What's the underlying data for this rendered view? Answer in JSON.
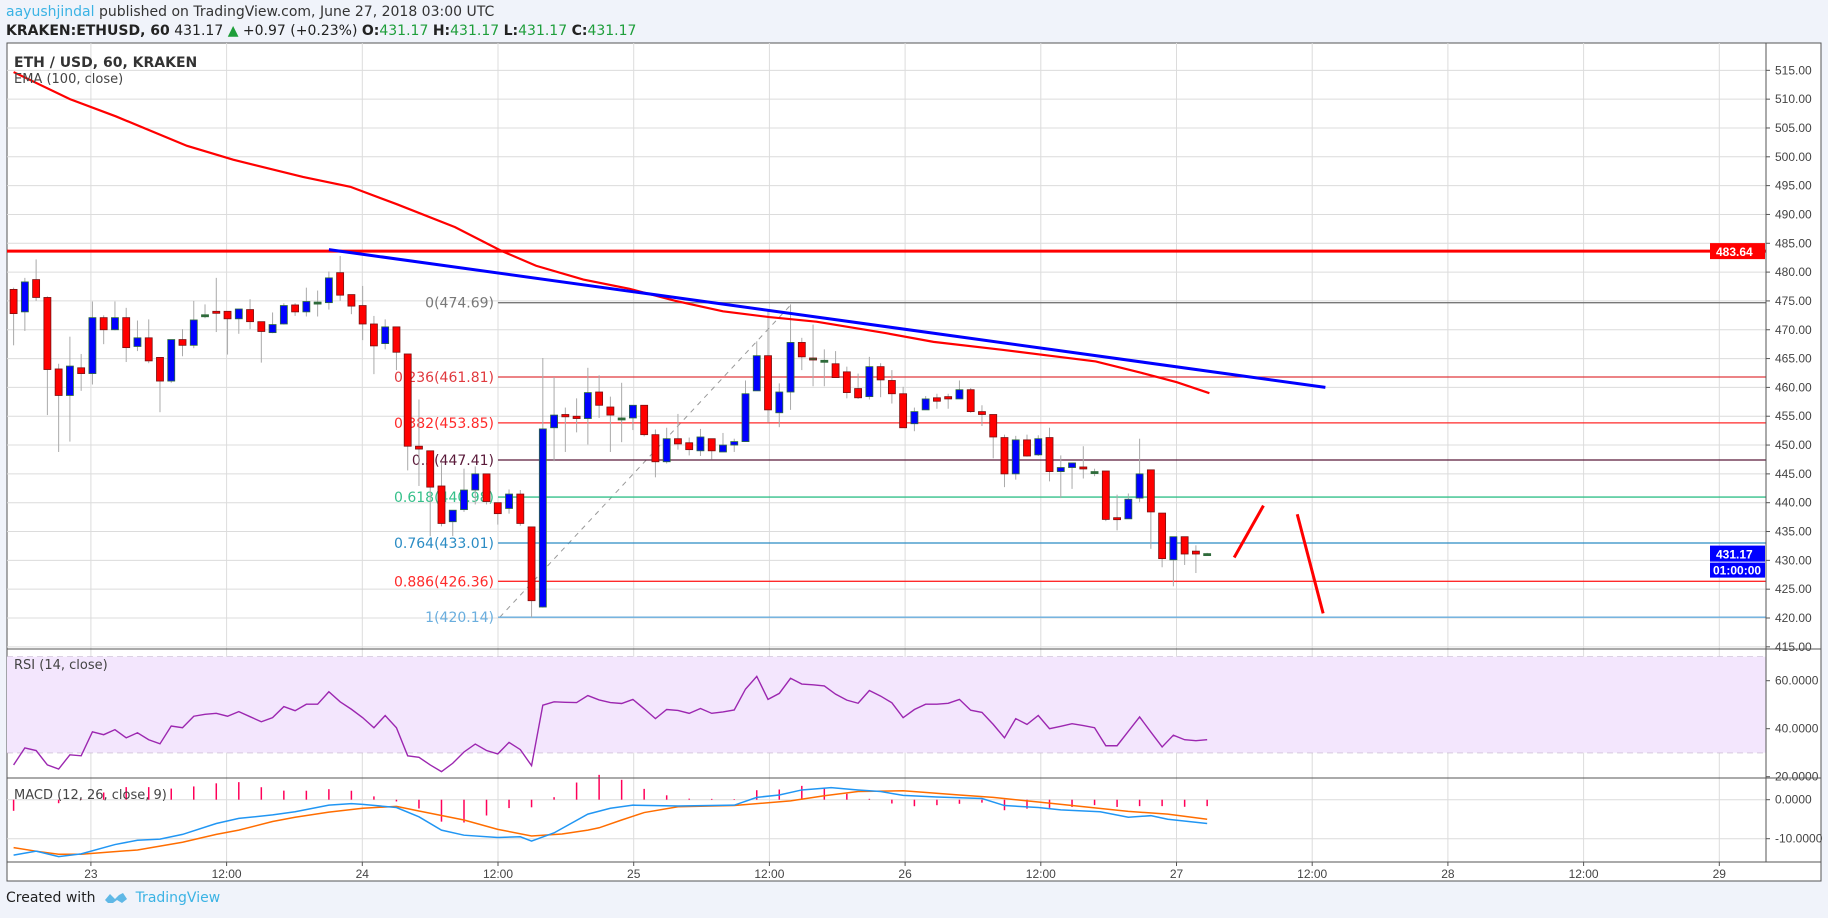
{
  "header": {
    "author": "aayushjindal",
    "published": "published on TradingView.com, June 27, 2018 03:00 UTC",
    "symbol": "KRAKEN:ETHUSD, 60",
    "last": "431.17",
    "change": "+0.97 (+0.23%)",
    "o_label": "O:",
    "o": "431.17",
    "h_label": "H:",
    "h": "431.17",
    "l_label": "L:",
    "l": "431.17",
    "c_label": "C:",
    "c": "431.17"
  },
  "legend": {
    "title": "ETH / USD, 60, KRAKEN",
    "ema": "EMA (100, close)",
    "rsi": "RSI (14, close)",
    "macd": "MACD (12, 26, close, 9)"
  },
  "footer": {
    "created_with": "Created with",
    "brand": "TradingView"
  },
  "colors": {
    "up": "#0000ff",
    "down": "#ff0000",
    "ema": "#ff0000",
    "trendline": "#0000ff",
    "resistance": "#ff0000",
    "rsi": "#9c27b0",
    "macd": "#2196f3",
    "signal": "#ff6d00",
    "hist": "#ff0059"
  },
  "chart_data": {
    "type": "candlestick",
    "title": "ETH / USD, 60, KRAKEN",
    "interval_minutes": 60,
    "price_axis": {
      "range": [
        415,
        515
      ],
      "ticks": [
        "415.00",
        "420.00",
        "425.00",
        "430.00",
        "435.00",
        "440.00",
        "445.00",
        "450.00",
        "455.00",
        "460.00",
        "465.00",
        "470.00",
        "475.00",
        "480.00",
        "485.00",
        "490.00",
        "495.00",
        "500.00",
        "505.00",
        "510.00",
        "515.00"
      ]
    },
    "time_axis": {
      "labels": [
        "23",
        "12:00",
        "24",
        "12:00",
        "25",
        "12:00",
        "26",
        "12:00",
        "27",
        "12:00",
        "28",
        "12:00",
        "29"
      ]
    },
    "ohlc": [
      [
        477.0,
        477.3,
        467.3,
        472.8
      ],
      [
        473.1,
        479.0,
        469.8,
        478.3
      ],
      [
        478.7,
        482.2,
        475.0,
        475.6
      ],
      [
        475.6,
        475.8,
        455.2,
        463.1
      ],
      [
        463.2,
        464.1,
        448.8,
        458.6
      ],
      [
        458.6,
        468.8,
        450.6,
        463.7
      ],
      [
        463.4,
        465.8,
        459.4,
        462.4
      ],
      [
        462.4,
        474.9,
        460.5,
        472.1
      ],
      [
        472.1,
        472.5,
        467.5,
        470.0
      ],
      [
        470.0,
        474.9,
        469.9,
        472.1
      ],
      [
        472.1,
        473.8,
        464.4,
        466.9
      ],
      [
        467.1,
        471.6,
        466.3,
        468.6
      ],
      [
        468.6,
        471.8,
        464.2,
        464.6
      ],
      [
        465.2,
        465.2,
        455.7,
        461.1
      ],
      [
        461.1,
        468.3,
        460.8,
        468.3
      ],
      [
        468.3,
        470.1,
        465.4,
        467.3
      ],
      [
        467.3,
        475.0,
        466.8,
        471.7
      ],
      [
        472.6,
        474.4,
        472.0,
        472.6
      ],
      [
        473.2,
        479.0,
        469.6,
        472.9
      ],
      [
        473.2,
        473.2,
        465.7,
        471.9
      ],
      [
        471.9,
        473.6,
        469.3,
        473.6
      ],
      [
        473.5,
        475.3,
        470.1,
        471.4
      ],
      [
        471.4,
        471.4,
        464.3,
        469.7
      ],
      [
        469.5,
        473.0,
        469.4,
        470.9
      ],
      [
        471.0,
        474.6,
        470.9,
        474.2
      ],
      [
        474.3,
        474.6,
        472.4,
        473.1
      ],
      [
        473.1,
        477.3,
        472.3,
        474.9
      ],
      [
        474.8,
        476.8,
        472.3,
        474.8
      ],
      [
        474.7,
        480.1,
        473.5,
        479.0
      ],
      [
        479.9,
        482.8,
        475.0,
        476.0
      ],
      [
        476.1,
        476.1,
        472.7,
        474.1
      ],
      [
        474.2,
        477.6,
        468.2,
        471.0
      ],
      [
        471.0,
        472.4,
        462.3,
        467.2
      ],
      [
        467.6,
        471.8,
        466.6,
        470.5
      ],
      [
        470.5,
        470.5,
        463.0,
        466.1
      ],
      [
        465.8,
        465.8,
        445.6,
        449.8
      ],
      [
        449.8,
        457.9,
        442.9,
        449.3
      ],
      [
        449.0,
        449.0,
        434.2,
        442.7
      ],
      [
        442.9,
        446.9,
        435.9,
        436.4
      ],
      [
        436.7,
        438.7,
        434.2,
        438.7
      ],
      [
        438.8,
        445.9,
        438.4,
        442.2
      ],
      [
        442.2,
        446.3,
        439.7,
        445.0
      ],
      [
        445.0,
        445.0,
        439.7,
        440.2
      ],
      [
        440.0,
        440.0,
        436.2,
        438.1
      ],
      [
        439.0,
        442.3,
        438.1,
        441.5
      ],
      [
        441.5,
        442.2,
        436.0,
        436.4
      ],
      [
        435.8,
        435.8,
        420.1,
        423.0
      ],
      [
        421.9,
        465.1,
        421.8,
        452.8
      ],
      [
        453.0,
        461.8,
        447.2,
        455.2
      ],
      [
        455.3,
        456.5,
        448.8,
        454.9
      ],
      [
        455.0,
        458.1,
        452.2,
        454.6
      ],
      [
        454.6,
        463.4,
        450.1,
        459.1
      ],
      [
        459.2,
        462.1,
        454.7,
        456.9
      ],
      [
        456.6,
        458.4,
        448.8,
        455.2
      ],
      [
        454.7,
        460.8,
        450.5,
        454.7
      ],
      [
        454.7,
        456.9,
        452.6,
        456.9
      ],
      [
        456.9,
        456.9,
        451.5,
        451.8
      ],
      [
        451.8,
        452.7,
        444.4,
        447.1
      ],
      [
        447.1,
        453.0,
        446.8,
        451.1
      ],
      [
        451.1,
        455.4,
        449.2,
        450.2
      ],
      [
        450.4,
        451.3,
        448.2,
        449.2
      ],
      [
        449.0,
        452.8,
        448.1,
        451.4
      ],
      [
        451.1,
        451.1,
        447.5,
        449.0
      ],
      [
        448.8,
        452.1,
        448.8,
        450.0
      ],
      [
        450.0,
        451.1,
        448.8,
        450.6
      ],
      [
        450.6,
        461.2,
        450.6,
        458.9
      ],
      [
        459.4,
        468.0,
        459.4,
        465.5
      ],
      [
        465.5,
        473.2,
        453.9,
        456.1
      ],
      [
        455.6,
        460.7,
        453.1,
        459.2
      ],
      [
        459.2,
        474.4,
        456.1,
        467.8
      ],
      [
        467.8,
        468.6,
        463.0,
        465.3
      ],
      [
        465.1,
        470.9,
        460.2,
        465.0
      ],
      [
        464.7,
        466.6,
        460.2,
        464.7
      ],
      [
        464.1,
        466.3,
        461.7,
        461.7
      ],
      [
        462.7,
        463.6,
        458.1,
        459.1
      ],
      [
        459.8,
        462.4,
        458.0,
        458.2
      ],
      [
        458.4,
        465.3,
        457.9,
        463.6
      ],
      [
        463.6,
        464.2,
        458.3,
        461.3
      ],
      [
        461.2,
        463.0,
        457.2,
        458.9
      ],
      [
        458.9,
        460.1,
        453.0,
        453.0
      ],
      [
        453.7,
        456.5,
        452.4,
        455.8
      ],
      [
        456.1,
        458.5,
        456.1,
        458.0
      ],
      [
        458.2,
        458.9,
        456.3,
        457.6
      ],
      [
        458.4,
        458.9,
        456.3,
        458.0
      ],
      [
        458.0,
        461.2,
        458.0,
        459.6
      ],
      [
        459.6,
        459.9,
        455.6,
        455.8
      ],
      [
        455.8,
        456.9,
        453.3,
        455.3
      ],
      [
        455.3,
        455.3,
        447.7,
        451.4
      ],
      [
        451.3,
        451.8,
        442.7,
        445.0
      ],
      [
        445.0,
        451.6,
        444.0,
        450.9
      ],
      [
        450.9,
        451.8,
        448.0,
        448.1
      ],
      [
        448.3,
        451.7,
        448.1,
        451.1
      ],
      [
        451.3,
        453.0,
        443.7,
        445.4
      ],
      [
        445.4,
        448.2,
        440.8,
        446.1
      ],
      [
        446.1,
        446.9,
        442.4,
        446.9
      ],
      [
        446.2,
        449.8,
        444.2,
        446.0
      ],
      [
        445.4,
        445.9,
        444.6,
        445.4
      ],
      [
        445.5,
        445.5,
        436.8,
        437.1
      ],
      [
        437.4,
        441.4,
        435.2,
        437.2
      ],
      [
        437.2,
        441.6,
        437.2,
        440.6
      ],
      [
        440.8,
        451.1,
        440.1,
        445.0
      ],
      [
        445.7,
        445.7,
        432.0,
        438.4
      ],
      [
        438.2,
        438.2,
        428.8,
        430.3
      ],
      [
        430.1,
        434.1,
        425.5,
        434.1
      ],
      [
        434.1,
        434.1,
        429.2,
        431.1
      ],
      [
        431.6,
        432.6,
        427.8,
        431.1
      ],
      [
        431.17,
        431.3,
        431.1,
        431.17
      ]
    ],
    "ema100": [
      [
        0,
        514.7
      ],
      [
        5,
        510.0
      ],
      [
        9.1,
        507.0
      ],
      [
        15.4,
        501.9
      ],
      [
        19.5,
        499.5
      ],
      [
        25.7,
        496.5
      ],
      [
        29.9,
        494.8
      ],
      [
        34,
        491.8
      ],
      [
        39.2,
        487.8
      ],
      [
        43.3,
        483.7
      ],
      [
        46.4,
        481.1
      ],
      [
        50.6,
        478.7
      ],
      [
        54.7,
        477.1
      ],
      [
        58.8,
        475.0
      ],
      [
        63,
        473.2
      ],
      [
        67.1,
        472.2
      ],
      [
        71.3,
        471.4
      ],
      [
        77.5,
        469.4
      ],
      [
        81.7,
        467.9
      ],
      [
        87.9,
        466.5
      ],
      [
        92,
        465.5
      ],
      [
        96.1,
        464.5
      ],
      [
        100.2,
        462.5
      ],
      [
        103.3,
        460.9
      ],
      [
        106.2,
        459.0
      ]
    ],
    "resistance": {
      "price": 483.64,
      "label": "483.64"
    },
    "trendline": {
      "from": [
        28,
        483.9
      ],
      "to": [
        116.5,
        460.0
      ]
    },
    "last_price": {
      "label": "431.17",
      "countdown": "01:00:00"
    },
    "fibonacci": {
      "anchor_from": [
        43.0,
        420.14
      ],
      "anchor_to": [
        69.2,
        474.69
      ],
      "levels": [
        {
          "label": "0(474.69)",
          "price": 474.69,
          "color": "#787878"
        },
        {
          "label": "0.236(461.81)",
          "price": 461.81,
          "color": "#e0393e"
        },
        {
          "label": "0.382(453.85)",
          "price": 453.85,
          "color": "#ff2a2a"
        },
        {
          "label": "0.5(447.41)",
          "price": 447.41,
          "color": "#5a1a3a"
        },
        {
          "label": "0.618(440.98)",
          "price": 440.98,
          "color": "#35c08a"
        },
        {
          "label": "0.764(433.01)",
          "price": 433.01,
          "color": "#2b8cc4"
        },
        {
          "label": "0.886(426.36)",
          "price": 426.36,
          "color": "#ff2a2a"
        },
        {
          "label": "1(420.14)",
          "price": 420.14,
          "color": "#6aaede"
        }
      ]
    },
    "annotations": [
      {
        "type": "arrow-line",
        "from": [
          108.4,
          430.5
        ],
        "to": [
          111.0,
          439.5
        ],
        "color": "#ff0000"
      },
      {
        "type": "arrow-line",
        "from": [
          114.0,
          438.0
        ],
        "to": [
          116.3,
          420.8
        ],
        "color": "#ff0000"
      }
    ],
    "rsi": {
      "axis_ticks": [
        "60.0000",
        "40.0000",
        "20.0000"
      ],
      "band": [
        30,
        70
      ],
      "values": [
        24.9,
        32.0,
        30.9,
        24.9,
        23.2,
        29.1,
        28.7,
        38.7,
        37.5,
        39.6,
        36.2,
        38.3,
        35.4,
        33.7,
        41.1,
        40.4,
        45.2,
        46.0,
        46.4,
        45.2,
        47.1,
        45.0,
        42.9,
        44.6,
        49.2,
        47.5,
        50.2,
        50.2,
        55.4,
        51.2,
        48.1,
        44.6,
        40.4,
        45.5,
        40.4,
        28.7,
        28.1,
        24.9,
        22.1,
        25.6,
        30.3,
        33.6,
        30.9,
        29.5,
        34.3,
        31.3,
        24.6,
        49.8,
        51.2,
        51.0,
        50.9,
        53.8,
        52.0,
        50.9,
        50.5,
        52.2,
        48.3,
        44.2,
        48.0,
        47.6,
        46.4,
        48.4,
        46.4,
        47.0,
        47.8,
        56.5,
        61.8,
        52.2,
        54.7,
        61.0,
        58.6,
        58.3,
        57.8,
        54.4,
        51.9,
        50.6,
        55.9,
        53.6,
        50.8,
        44.6,
        48.0,
        50.2,
        50.2,
        50.6,
        52.2,
        47.7,
        46.8,
        41.8,
        36.2,
        44.2,
        41.8,
        45.5,
        40.0,
        41.0,
        42.1,
        41.3,
        40.4,
        32.9,
        32.9,
        38.9,
        44.9,
        38.6,
        32.4,
        37.3,
        35.4,
        35.0,
        35.4
      ]
    },
    "macd": {
      "axis_ticks": [
        "0.0000",
        "-10.0000"
      ],
      "macd_line": [
        [
          0,
          -14.2
        ],
        [
          2,
          -13.2
        ],
        [
          4,
          -14.6
        ],
        [
          6,
          -13.9
        ],
        [
          9,
          -11.5
        ],
        [
          11,
          -10.4
        ],
        [
          13,
          -10.1
        ],
        [
          15,
          -8.9
        ],
        [
          18,
          -6.1
        ],
        [
          20,
          -4.8
        ],
        [
          23,
          -3.9
        ],
        [
          25,
          -3.1
        ],
        [
          28,
          -1.4
        ],
        [
          30,
          -1.0
        ],
        [
          31,
          -1.2
        ],
        [
          34,
          -2.0
        ],
        [
          36,
          -4.4
        ],
        [
          38,
          -7.8
        ],
        [
          40,
          -9.1
        ],
        [
          43,
          -9.7
        ],
        [
          45,
          -9.5
        ],
        [
          46,
          -10.6
        ],
        [
          48,
          -8.5
        ],
        [
          51,
          -3.7
        ],
        [
          53,
          -2.2
        ],
        [
          55,
          -1.4
        ],
        [
          59,
          -1.6
        ],
        [
          64,
          -1.4
        ],
        [
          66,
          0.6
        ],
        [
          68,
          1.2
        ],
        [
          70,
          2.5
        ],
        [
          72.6,
          3.1
        ],
        [
          75,
          2.5
        ],
        [
          77,
          2.1
        ],
        [
          79,
          1.1
        ],
        [
          82,
          0.7
        ],
        [
          86,
          0.3
        ],
        [
          88,
          -1.5
        ],
        [
          91,
          -2.0
        ],
        [
          93,
          -2.6
        ],
        [
          96.5,
          -3.1
        ],
        [
          99,
          -4.5
        ],
        [
          101,
          -4.1
        ],
        [
          102.5,
          -5.0
        ],
        [
          106,
          -6.1
        ]
      ],
      "signal_line": [
        [
          0,
          -12.3
        ],
        [
          2,
          -13.2
        ],
        [
          4,
          -14.0
        ],
        [
          6,
          -14.0
        ],
        [
          9,
          -13.3
        ],
        [
          11,
          -12.9
        ],
        [
          15,
          -10.9
        ],
        [
          18,
          -8.9
        ],
        [
          20,
          -7.8
        ],
        [
          23,
          -5.6
        ],
        [
          25,
          -4.5
        ],
        [
          28,
          -3.2
        ],
        [
          31,
          -2.2
        ],
        [
          34,
          -1.7
        ],
        [
          36,
          -2.9
        ],
        [
          40,
          -5.2
        ],
        [
          43,
          -7.6
        ],
        [
          46,
          -9.3
        ],
        [
          48.7,
          -8.8
        ],
        [
          51,
          -7.8
        ],
        [
          52,
          -7.2
        ],
        [
          54,
          -5.2
        ],
        [
          56,
          -3.3
        ],
        [
          59,
          -1.8
        ],
        [
          64,
          -1.5
        ],
        [
          69,
          -0.3
        ],
        [
          72,
          1.0
        ],
        [
          75,
          2.1
        ],
        [
          79,
          2.3
        ],
        [
          84,
          1.2
        ],
        [
          87,
          0.6
        ],
        [
          91,
          -0.6
        ],
        [
          94,
          -1.5
        ],
        [
          99,
          -3.0
        ],
        [
          102.5,
          -3.7
        ],
        [
          106,
          -5.0
        ]
      ]
    }
  }
}
